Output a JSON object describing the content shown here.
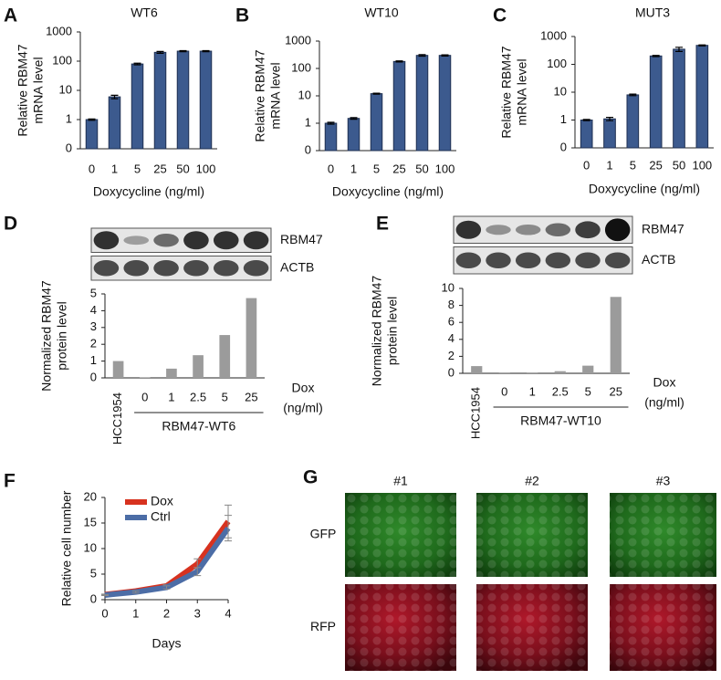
{
  "chart_data": [
    {
      "type": "bar",
      "panel": "A",
      "title": "WT6",
      "ylabel": [
        "Relative RBM47",
        "mRNA level"
      ],
      "xlabel": "Doxycycline (ng/ml)",
      "categories": [
        "0",
        "1",
        "5",
        "25",
        "50",
        "100"
      ],
      "values": [
        1,
        6,
        80,
        200,
        220,
        220
      ],
      "errors": [
        0.05,
        0.8,
        5,
        15,
        10,
        10
      ],
      "color": "#3c5a8e",
      "log_scale": true,
      "ylim": [
        0.1,
        1000
      ],
      "yticks": [
        {
          "value": 0.1,
          "label": "0"
        },
        1,
        10,
        100,
        1000
      ]
    },
    {
      "type": "bar",
      "panel": "B",
      "title": "WT10",
      "ylabel": [
        "Relative RBM47",
        "mRNA level"
      ],
      "xlabel": "Doxycycline (ng/ml)",
      "categories": [
        "0",
        "1",
        "5",
        "25",
        "50",
        "100"
      ],
      "values": [
        1,
        1.5,
        12,
        180,
        300,
        300
      ],
      "errors": [
        0.08,
        0.1,
        0.5,
        8,
        20,
        15
      ],
      "color": "#3c5a8e",
      "log_scale": true,
      "ylim": [
        0.1,
        1000
      ],
      "yticks": [
        {
          "value": 0.1,
          "label": "0"
        },
        1,
        10,
        100,
        1000
      ]
    },
    {
      "type": "bar",
      "panel": "C",
      "title": "MUT3",
      "ylabel": [
        "Relative RBM47",
        "mRNA level"
      ],
      "xlabel": "Doxycycline (ng/ml)",
      "categories": [
        "0",
        "1",
        "5",
        "25",
        "50",
        "100"
      ],
      "values": [
        1,
        1.1,
        8,
        200,
        350,
        480
      ],
      "errors": [
        0.05,
        0.15,
        0.5,
        10,
        60,
        20
      ],
      "color": "#3c5a8e",
      "log_scale": true,
      "ylim": [
        0.1,
        1000
      ],
      "yticks": [
        {
          "value": 0.1,
          "label": "0"
        },
        1,
        10,
        100,
        1000
      ]
    },
    {
      "type": "bar",
      "panel": "D",
      "ylabel": [
        "Normalized RBM47",
        "protein level"
      ],
      "blot_labels": [
        "RBM47",
        "ACTB"
      ],
      "categories": [
        "HCC1954",
        "0",
        "1",
        "2.5",
        "5",
        "25"
      ],
      "values": [
        1.0,
        0.02,
        0.55,
        1.35,
        2.55,
        4.75
      ],
      "group_label": "RBM47-WT6",
      "dose_label": [
        "Dox",
        "(ng/ml)"
      ],
      "color": "#9b9b9b",
      "log_scale": false,
      "ylim": [
        0,
        5
      ],
      "yticks": [
        0,
        1,
        2,
        3,
        4,
        5
      ]
    },
    {
      "type": "bar",
      "panel": "E",
      "ylabel": [
        "Normalized RBM47",
        "protein level"
      ],
      "blot_labels": [
        "RBM47",
        "ACTB"
      ],
      "categories": [
        "HCC1954",
        "0",
        "1",
        "2.5",
        "5",
        "25"
      ],
      "values": [
        0.85,
        0.02,
        0.02,
        0.25,
        0.9,
        9.0
      ],
      "group_label": "RBM47-WT10",
      "dose_label": [
        "Dox",
        "(ng/ml)"
      ],
      "color": "#9b9b9b",
      "log_scale": false,
      "ylim": [
        0,
        10
      ],
      "yticks": [
        0,
        2,
        4,
        6,
        8,
        10
      ]
    },
    {
      "type": "line",
      "panel": "F",
      "ylabel": "Relative cell number",
      "xlabel": "Days",
      "legend": "upper left",
      "x": [
        0,
        1,
        2,
        3,
        4
      ],
      "xlim": [
        0,
        4
      ],
      "xticks": [
        0,
        1,
        2,
        3,
        4
      ],
      "ylim": [
        0,
        20
      ],
      "yticks": [
        0,
        5,
        10,
        15,
        20
      ],
      "series": [
        {
          "name": "Dox",
          "color": "#d7321f",
          "values": [
            1,
            1.7,
            2.7,
            7.0,
            15.3
          ],
          "errors": [
            0.1,
            0.2,
            0.3,
            1.0,
            3.2
          ]
        },
        {
          "name": "Ctrl",
          "color": "#4c6da6",
          "values": [
            0.9,
            1.5,
            2.4,
            5.5,
            14.0
          ],
          "errors": [
            0.1,
            0.2,
            0.3,
            0.8,
            2.5
          ]
        }
      ]
    }
  ],
  "figure_g": {
    "panel": "G",
    "columns": [
      "#1",
      "#2",
      "#3"
    ],
    "rows": [
      "GFP",
      "RFP"
    ]
  }
}
